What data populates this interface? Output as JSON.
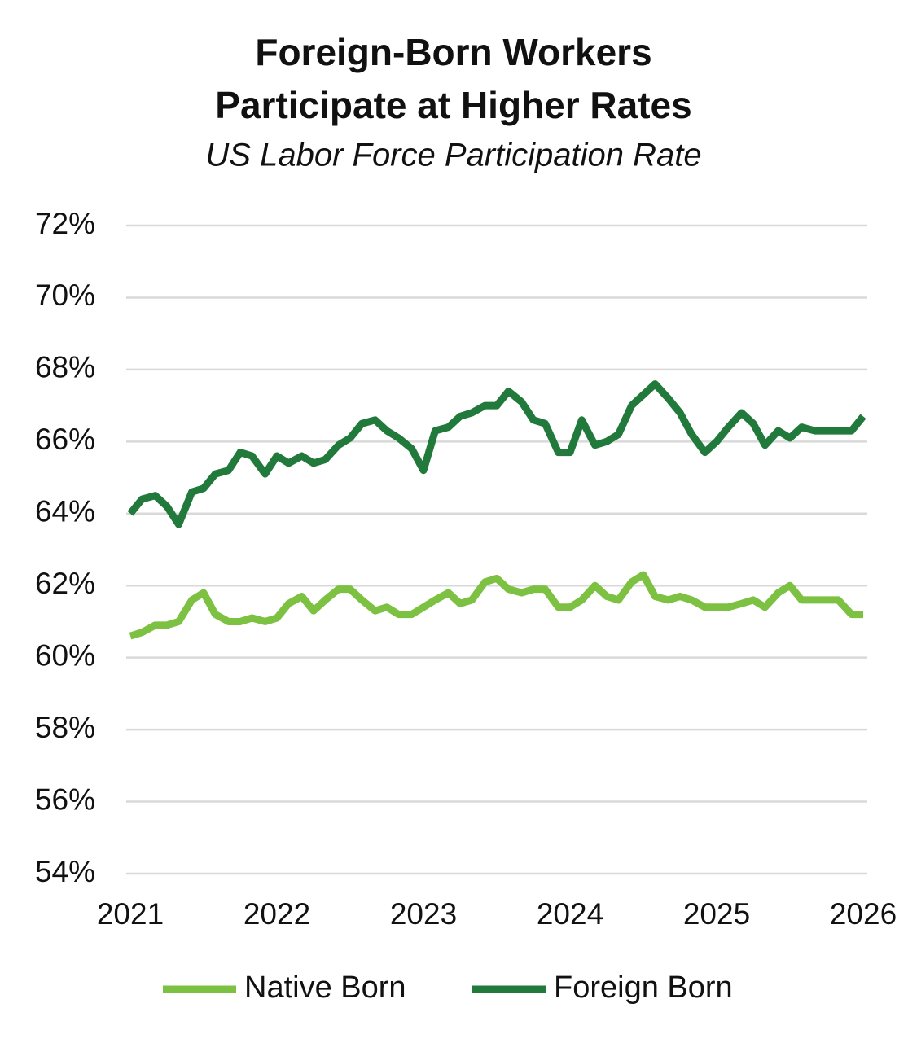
{
  "chart_data": {
    "type": "line",
    "title": [
      "Foreign-Born Workers",
      "Participate at Higher Rates"
    ],
    "subtitle": "US  Labor Force Participation Rate",
    "x": [
      2021,
      2021.08,
      2021.17,
      2021.25,
      2021.33,
      2021.42,
      2021.5,
      2021.58,
      2021.67,
      2021.75,
      2021.83,
      2021.92,
      2022,
      2022.08,
      2022.17,
      2022.25,
      2022.33,
      2022.42,
      2022.5,
      2022.58,
      2022.67,
      2022.75,
      2022.83,
      2022.92,
      2023,
      2023.08,
      2023.17,
      2023.25,
      2023.33,
      2023.42,
      2023.5,
      2023.58,
      2023.67,
      2023.75,
      2023.83,
      2023.92,
      2024,
      2024.08,
      2024.17,
      2024.25,
      2024.33,
      2024.42,
      2024.5,
      2024.58,
      2024.67,
      2024.75,
      2024.83,
      2024.92,
      2025,
      2025.08,
      2025.17,
      2025.25,
      2025.33,
      2025.42,
      2025.5,
      2025.58,
      2025.67,
      2025.75,
      2025.83,
      2025.92,
      2026
    ],
    "series": [
      {
        "name": "Native Born",
        "color": "#7dc142",
        "values": [
          60.6,
          60.7,
          60.9,
          60.9,
          61.0,
          61.6,
          61.8,
          61.2,
          61.0,
          61.0,
          61.1,
          61.0,
          61.1,
          61.5,
          61.7,
          61.3,
          61.6,
          61.9,
          61.9,
          61.6,
          61.3,
          61.4,
          61.2,
          61.2,
          61.4,
          61.6,
          61.8,
          61.5,
          61.6,
          62.1,
          62.2,
          61.9,
          61.8,
          61.9,
          61.9,
          61.4,
          61.4,
          61.6,
          62.0,
          61.7,
          61.6,
          62.1,
          62.3,
          61.7,
          61.6,
          61.7,
          61.6,
          61.4,
          61.4,
          61.4,
          61.5,
          61.6,
          61.4,
          61.8,
          62.0,
          61.6,
          61.6,
          61.6,
          61.6,
          61.2,
          61.2
        ]
      },
      {
        "name": "Foreign Born",
        "color": "#217a3c",
        "values": [
          64.0,
          64.4,
          64.5,
          64.2,
          63.7,
          64.6,
          64.7,
          65.1,
          65.2,
          65.7,
          65.6,
          65.1,
          65.6,
          65.4,
          65.6,
          65.4,
          65.5,
          65.9,
          66.1,
          66.5,
          66.6,
          66.3,
          66.1,
          65.8,
          65.2,
          66.3,
          66.4,
          66.7,
          66.8,
          67.0,
          67.0,
          67.4,
          67.1,
          66.6,
          66.5,
          65.7,
          65.7,
          66.6,
          65.9,
          66.0,
          66.2,
          67.0,
          67.3,
          67.6,
          67.2,
          66.8,
          66.2,
          65.7,
          66.0,
          66.4,
          66.8,
          66.5,
          65.9,
          66.3,
          66.1,
          66.4,
          66.3,
          66.3,
          66.3,
          66.3,
          66.7
        ]
      }
    ],
    "xlim": [
      2021,
      2026
    ],
    "xticks": [
      2021,
      2022,
      2023,
      2024,
      2025,
      2026
    ],
    "ylim": [
      54,
      72
    ],
    "yticks": [
      {
        "value": 54,
        "label": "54%"
      },
      {
        "value": 56,
        "label": "56%"
      },
      {
        "value": 58,
        "label": "58%"
      },
      {
        "value": 60,
        "label": "60%"
      },
      {
        "value": 62,
        "label": "62%"
      },
      {
        "value": 64,
        "label": "64%"
      },
      {
        "value": 66,
        "label": "66%"
      },
      {
        "value": 68,
        "label": "68%"
      },
      {
        "value": 70,
        "label": "70%"
      },
      {
        "value": 72,
        "label": "72%"
      }
    ],
    "grid": true,
    "legend": "bottom"
  }
}
